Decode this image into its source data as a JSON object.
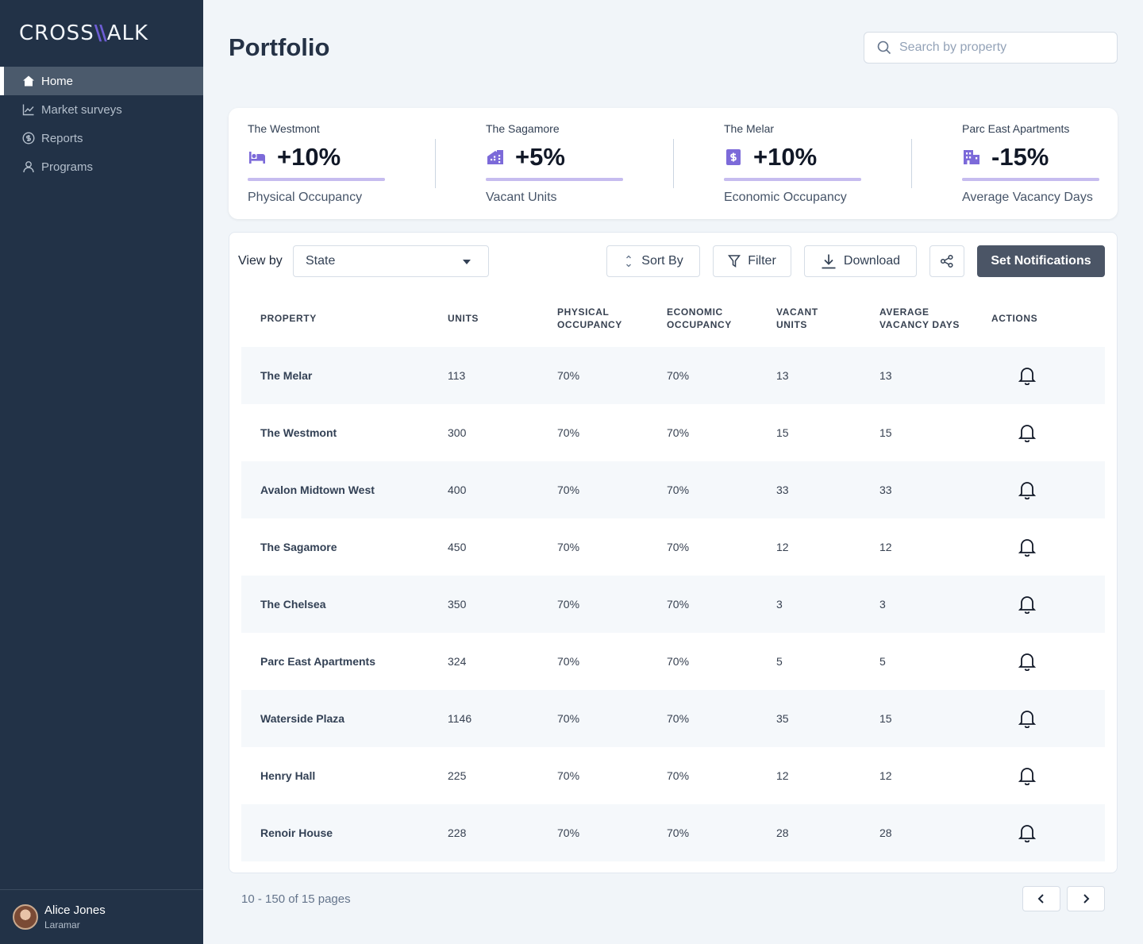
{
  "brand": {
    "logo_left": "CROSS",
    "logo_mark": "\\\\",
    "logo_right": "ALK",
    "accent": "#6d5dd3"
  },
  "sidebar": {
    "items": [
      {
        "label": "Home",
        "icon": "home-icon",
        "active": true
      },
      {
        "label": "Market surveys",
        "icon": "chart-line-icon"
      },
      {
        "label": "Reports",
        "icon": "dollar-circle-icon"
      },
      {
        "label": "Programs",
        "icon": "user-icon"
      }
    ],
    "user": {
      "name": "Alice Jones",
      "org": "Laramar"
    }
  },
  "header": {
    "title": "Portfolio",
    "search_placeholder": "Search by property"
  },
  "kpis": [
    {
      "property": "The Westmont",
      "value": "+10%",
      "label": "Physical Occupancy",
      "icon": "bed-icon"
    },
    {
      "property": "The Sagamore",
      "value": "+5%",
      "label": "Vacant Units",
      "icon": "house-icon"
    },
    {
      "property": "The Melar",
      "value": "+10%",
      "label": "Economic Occupancy",
      "icon": "dollar-icon"
    },
    {
      "property": "Parc East Apartments",
      "value": "-15%",
      "label": "Average Vacancy Days",
      "icon": "building-icon"
    }
  ],
  "toolbar": {
    "view_by_label": "View by",
    "view_by_value": "State",
    "sort_label": "Sort By",
    "filter_label": "Filter",
    "download_label": "Download",
    "notify_label": "Set Notifications"
  },
  "table": {
    "headers": {
      "property": "PROPERTY",
      "units": "UNITS",
      "physical_1": "PHYSICAL",
      "physical_2": "OCCUPANCY",
      "economic_1": "ECONOMIC",
      "economic_2": "OCCUPANCY",
      "vacant_1": "VACANT",
      "vacant_2": "UNITS",
      "avg_1": "AVERAGE",
      "avg_2": "VACANCY DAYS",
      "actions": "ACTIONS"
    },
    "rows": [
      {
        "property": "The Melar",
        "units": "113",
        "physical": "70%",
        "economic": "70%",
        "vacant": "13",
        "avg_days": "13"
      },
      {
        "property": "The Westmont",
        "units": "300",
        "physical": "70%",
        "economic": "70%",
        "vacant": "15",
        "avg_days": "15"
      },
      {
        "property": "Avalon Midtown West",
        "units": "400",
        "physical": "70%",
        "economic": "70%",
        "vacant": "33",
        "avg_days": "33"
      },
      {
        "property": "The Sagamore",
        "units": "450",
        "physical": "70%",
        "economic": "70%",
        "vacant": "12",
        "avg_days": "12"
      },
      {
        "property": "The Chelsea",
        "units": "350",
        "physical": "70%",
        "economic": "70%",
        "vacant": "3",
        "avg_days": "3"
      },
      {
        "property": "Parc East Apartments",
        "units": "324",
        "physical": "70%",
        "economic": "70%",
        "vacant": "5",
        "avg_days": "5"
      },
      {
        "property": "Waterside Plaza",
        "units": "1146",
        "physical": "70%",
        "economic": "70%",
        "vacant": "35",
        "avg_days": "15"
      },
      {
        "property": "Henry Hall",
        "units": "225",
        "physical": "70%",
        "economic": "70%",
        "vacant": "12",
        "avg_days": "12"
      },
      {
        "property": "Renoir House",
        "units": "228",
        "physical": "70%",
        "economic": "70%",
        "vacant": "28",
        "avg_days": "28"
      }
    ]
  },
  "pagination": {
    "text": "10 - 150 of 15 pages"
  }
}
